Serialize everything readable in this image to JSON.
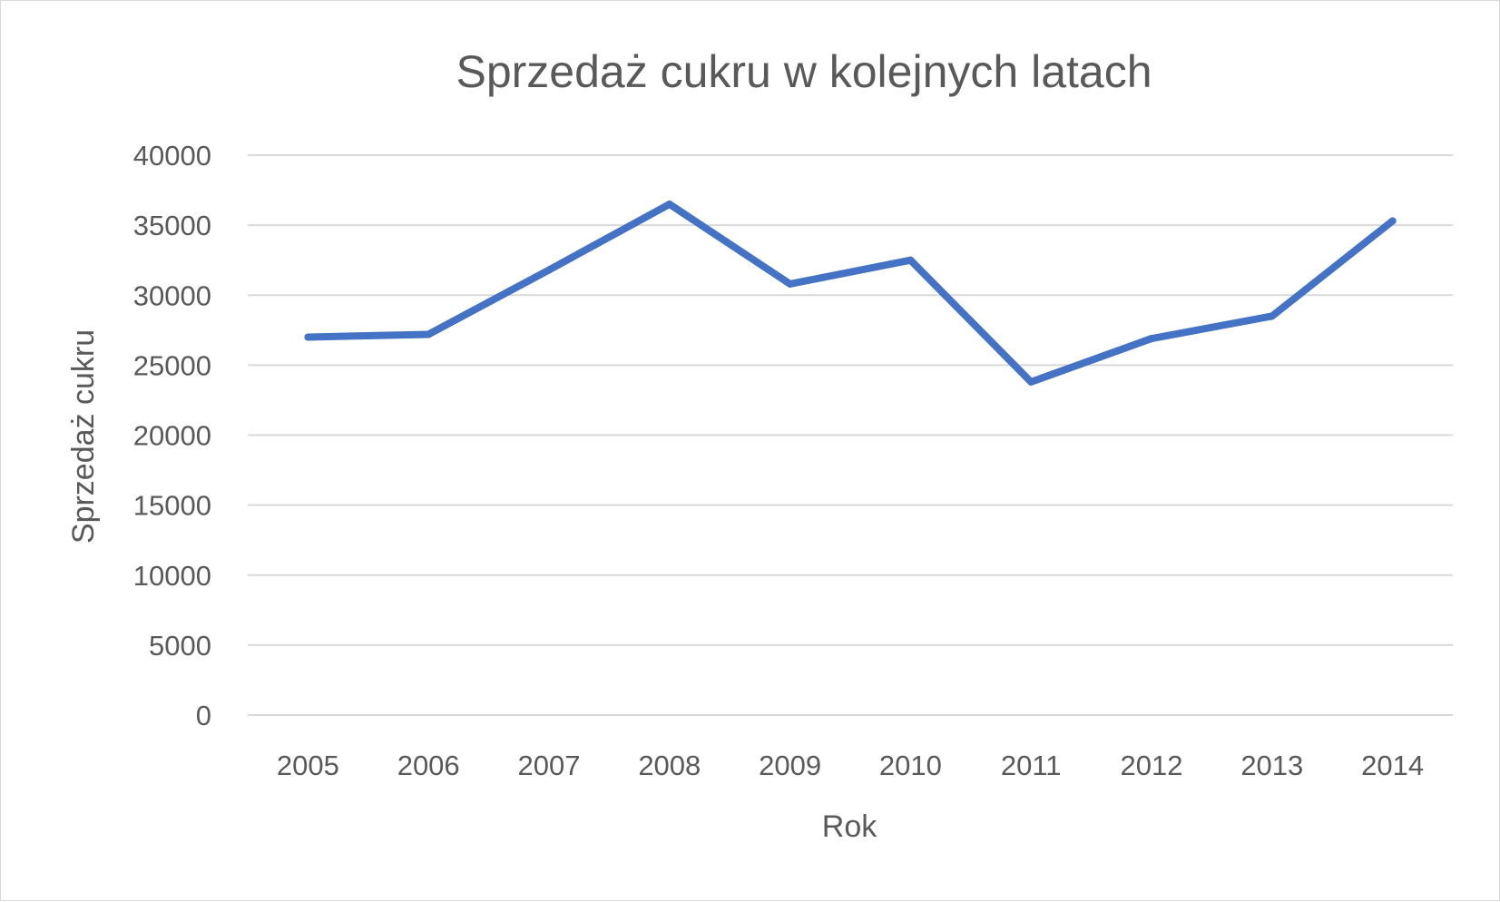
{
  "chart_data": {
    "type": "line",
    "title": "Sprzedaż cukru w kolejnych latach",
    "xlabel": "Rok",
    "ylabel": "Sprzedaż cukru",
    "categories": [
      "2005",
      "2006",
      "2007",
      "2008",
      "2009",
      "2010",
      "2011",
      "2012",
      "2013",
      "2014"
    ],
    "series": [
      {
        "values": [
          27000,
          27200,
          31800,
          36500,
          30800,
          32500,
          23800,
          26900,
          28500,
          35300
        ]
      }
    ],
    "ylim": [
      0,
      40000
    ],
    "yticks": [
      "0",
      "5000",
      "10000",
      "15000",
      "20000",
      "25000",
      "30000",
      "35000",
      "40000"
    ],
    "grid": true,
    "legend": "none",
    "colors": {
      "series": "#4472c4",
      "gridline": "#d9d9d9",
      "text": "#595959"
    }
  }
}
